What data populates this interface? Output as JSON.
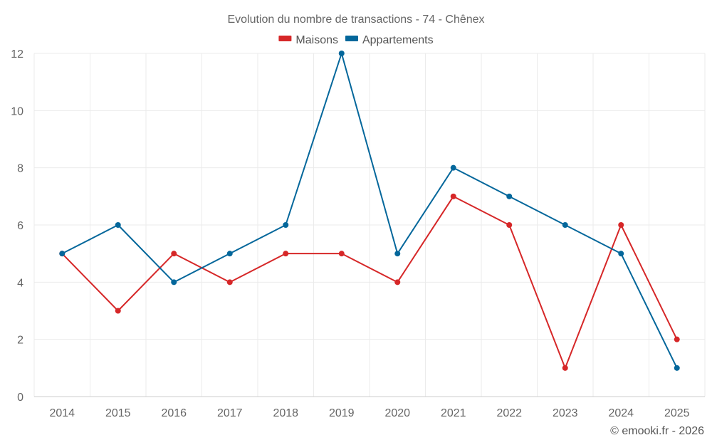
{
  "chart_data": {
    "type": "line",
    "title": "Evolution du nombre de transactions - 74 - Chênex",
    "xlabel": "",
    "ylabel": "",
    "categories": [
      "2014",
      "2015",
      "2016",
      "2017",
      "2018",
      "2019",
      "2020",
      "2021",
      "2022",
      "2023",
      "2024",
      "2025"
    ],
    "ylim": [
      0,
      12
    ],
    "yticks": [
      0,
      2,
      4,
      6,
      8,
      10,
      12
    ],
    "grid": true,
    "legend_position": "top-center",
    "series": [
      {
        "name": "Maisons",
        "color": "#d62728",
        "values": [
          5,
          3,
          5,
          4,
          5,
          5,
          4,
          7,
          6,
          1,
          6,
          2
        ]
      },
      {
        "name": "Appartements",
        "color": "#04679b",
        "values": [
          5,
          6,
          4,
          5,
          6,
          12,
          5,
          8,
          7,
          6,
          5,
          1
        ]
      }
    ]
  },
  "credit": "© emooki.fr - 2026"
}
